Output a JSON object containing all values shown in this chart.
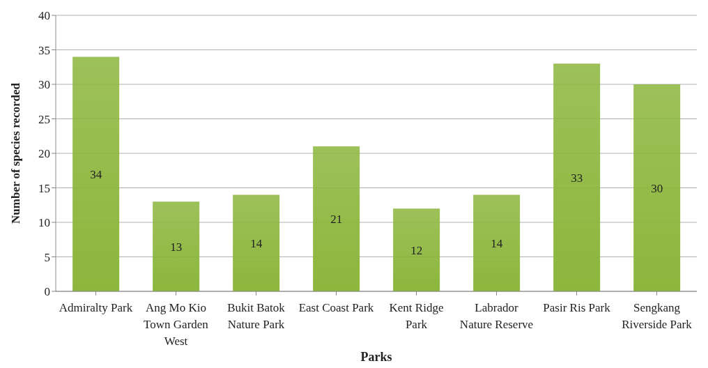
{
  "chart_data": {
    "type": "bar",
    "xlabel": "Parks",
    "ylabel": "Number of species recorded",
    "categories": [
      "Admiralty Park",
      "Ang Mo Kio Town Garden West",
      "Bukit Batok Nature Park",
      "East Coast Park",
      "Kent Ridge Park",
      "Labrador Nature Reserve",
      "Pasir Ris Park",
      "Sengkang Riverside Park"
    ],
    "values": [
      34,
      13,
      14,
      21,
      12,
      14,
      33,
      30
    ],
    "color": "#8cb63c",
    "ylim": [
      0,
      40
    ],
    "yticks": [
      0,
      5,
      10,
      15,
      20,
      25,
      30,
      35,
      40
    ],
    "grid": "y",
    "data_labels": true,
    "legend": false
  }
}
